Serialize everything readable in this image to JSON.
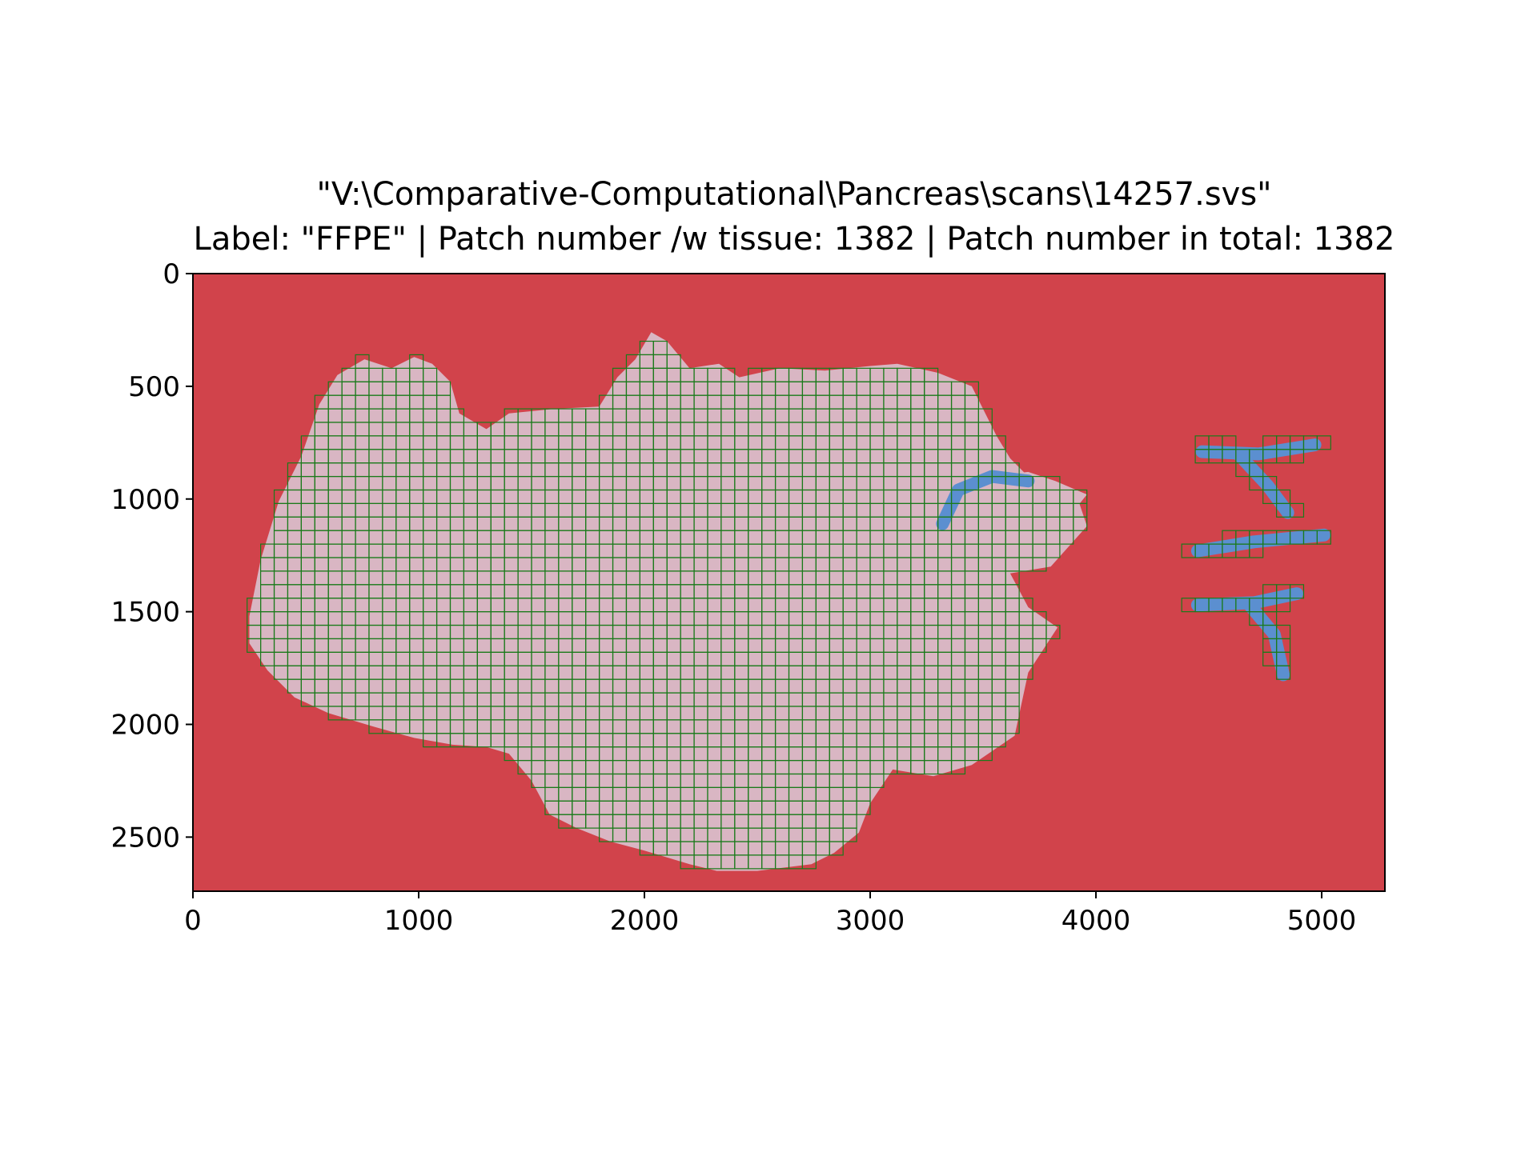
{
  "figure": {
    "title_line1": "\"V:\\Comparative-Computational\\Pancreas\\scans\\14257.svs\"",
    "title_line2": "Label: \"FFPE\" | Patch number /w tissue: 1382 | Patch number in total: 1382"
  },
  "colors": {
    "background_mask": "#d1434b",
    "tissue": "#d9b6c3",
    "patch_grid": "#1a7a1a",
    "marker_ink": "#5b8fd0",
    "axes_frame": "#000000"
  },
  "chart_data": {
    "type": "heatmap",
    "title": "\"V:\\Comparative-Computational\\Pancreas\\scans\\14257.svs\"\nLabel: \"FFPE\" | Patch number /w tissue: 1382 | Patch number in total: 1382",
    "xlabel": "",
    "ylabel": "",
    "xlim": [
      0,
      5280
    ],
    "ylim": [
      2740,
      0
    ],
    "x_ticks": [
      0,
      1000,
      2000,
      3000,
      4000,
      5000
    ],
    "y_ticks": [
      0,
      500,
      1000,
      1500,
      2000,
      2500
    ],
    "grid": false,
    "patch_size": 60,
    "patches_with_tissue": 1382,
    "patches_total": 1382,
    "main_tissue_outline": [
      [
        250,
        1520
      ],
      [
        300,
        1270
      ],
      [
        380,
        1010
      ],
      [
        480,
        810
      ],
      [
        560,
        580
      ],
      [
        640,
        450
      ],
      [
        760,
        380
      ],
      [
        880,
        420
      ],
      [
        980,
        370
      ],
      [
        1060,
        400
      ],
      [
        1140,
        480
      ],
      [
        1180,
        620
      ],
      [
        1300,
        690
      ],
      [
        1400,
        620
      ],
      [
        1600,
        600
      ],
      [
        1800,
        590
      ],
      [
        1880,
        460
      ],
      [
        1960,
        380
      ],
      [
        2030,
        260
      ],
      [
        2100,
        300
      ],
      [
        2200,
        420
      ],
      [
        2330,
        400
      ],
      [
        2420,
        460
      ],
      [
        2600,
        420
      ],
      [
        2800,
        430
      ],
      [
        3000,
        410
      ],
      [
        3120,
        400
      ],
      [
        3300,
        440
      ],
      [
        3450,
        500
      ],
      [
        3560,
        720
      ],
      [
        3620,
        820
      ],
      [
        3700,
        900
      ],
      [
        3780,
        960
      ],
      [
        3920,
        1000
      ],
      [
        3960,
        1120
      ],
      [
        3800,
        1300
      ],
      [
        3620,
        1330
      ],
      [
        3700,
        1480
      ],
      [
        3830,
        1570
      ],
      [
        3700,
        1770
      ],
      [
        3640,
        2050
      ],
      [
        3450,
        2180
      ],
      [
        3280,
        2230
      ],
      [
        3100,
        2200
      ],
      [
        3000,
        2350
      ],
      [
        2950,
        2480
      ],
      [
        2840,
        2570
      ],
      [
        2740,
        2620
      ],
      [
        2500,
        2650
      ],
      [
        2320,
        2650
      ],
      [
        2200,
        2620
      ],
      [
        2000,
        2560
      ],
      [
        1850,
        2520
      ],
      [
        1700,
        2460
      ],
      [
        1580,
        2400
      ],
      [
        1500,
        2250
      ],
      [
        1400,
        2130
      ],
      [
        1300,
        2100
      ],
      [
        1150,
        2090
      ],
      [
        980,
        2060
      ],
      [
        800,
        2010
      ],
      [
        600,
        1950
      ],
      [
        450,
        1880
      ],
      [
        330,
        1760
      ],
      [
        250,
        1640
      ]
    ],
    "right_tissue_outline": [
      [
        3300,
        1110
      ],
      [
        3380,
        980
      ],
      [
        3520,
        900
      ],
      [
        3700,
        880
      ],
      [
        3820,
        920
      ],
      [
        3960,
        980
      ],
      [
        3880,
        1080
      ],
      [
        3760,
        1140
      ],
      [
        3620,
        1150
      ],
      [
        3500,
        1120
      ],
      [
        3420,
        1150
      ]
    ],
    "marker_strokes": [
      [
        [
          4470,
          790
        ],
        [
          4720,
          800
        ],
        [
          4970,
          760
        ]
      ],
      [
        [
          4630,
          800
        ],
        [
          4760,
          940
        ],
        [
          4850,
          1060
        ]
      ],
      [
        [
          4450,
          1230
        ],
        [
          4700,
          1190
        ],
        [
          5010,
          1160
        ]
      ],
      [
        [
          4450,
          1470
        ],
        [
          4700,
          1460
        ],
        [
          4890,
          1420
        ]
      ],
      [
        [
          4680,
          1470
        ],
        [
          4790,
          1600
        ],
        [
          4830,
          1780
        ]
      ],
      [
        [
          3320,
          1110
        ],
        [
          3390,
          960
        ],
        [
          3540,
          900
        ],
        [
          3700,
          920
        ]
      ]
    ]
  }
}
